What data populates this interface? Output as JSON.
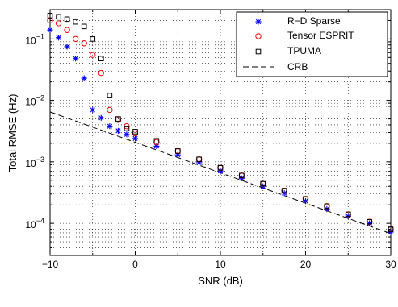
{
  "chart_data": {
    "type": "scatter",
    "xlabel": "SNR (dB)",
    "ylabel": "Total RMSE (Hz)",
    "xlim": [
      -10,
      30
    ],
    "ylim": [
      3e-05,
      0.3
    ],
    "yscale": "log",
    "grid": true,
    "legend_position": "top-right",
    "x_ticks": [
      -10,
      0,
      10,
      20,
      30
    ],
    "x_tick_labels": [
      "−10",
      "0",
      "10",
      "20",
      "30"
    ],
    "y_ticks": [
      0.0001,
      0.001,
      0.01,
      0.1
    ],
    "y_tick_labels": [
      {
        "base": "10",
        "exp": "−4"
      },
      {
        "base": "10",
        "exp": "−3"
      },
      {
        "base": "10",
        "exp": "−2"
      },
      {
        "base": "10",
        "exp": "−1"
      }
    ],
    "series": [
      {
        "name": "R−D Sparse",
        "marker": "star",
        "color": "#0000ff",
        "points": [
          [
            -10,
            0.14
          ],
          [
            -9,
            0.105
          ],
          [
            -8,
            0.075
          ],
          [
            -7,
            0.048
          ],
          [
            -6,
            0.023
          ],
          [
            -5,
            0.007
          ],
          [
            -4,
            0.0052
          ],
          [
            -3,
            0.0038
          ],
          [
            -2,
            0.0032
          ],
          [
            -1,
            0.0028
          ],
          [
            0,
            0.0024
          ],
          [
            2.5,
            0.0018
          ],
          [
            5,
            0.0013
          ],
          [
            7.5,
            0.00097
          ],
          [
            10,
            0.00071
          ],
          [
            12.5,
            0.00054
          ],
          [
            15,
            0.0004
          ],
          [
            17.5,
            0.00031
          ],
          [
            20,
            0.00023
          ],
          [
            22.5,
            0.00017
          ],
          [
            25,
            0.00013
          ],
          [
            27.5,
            0.0001
          ],
          [
            30,
            7.2e-05
          ]
        ]
      },
      {
        "name": "Tensor ESPRIT",
        "marker": "circle",
        "color": "#ff0000",
        "points": [
          [
            -10,
            0.2
          ],
          [
            -9,
            0.18
          ],
          [
            -8,
            0.14
          ],
          [
            -7,
            0.1
          ],
          [
            -6,
            0.085
          ],
          [
            -5,
            0.055
          ],
          [
            -4,
            0.028
          ],
          [
            -3,
            0.007
          ],
          [
            -2,
            0.0048
          ],
          [
            -1,
            0.0038
          ],
          [
            0,
            0.0029
          ],
          [
            2.5,
            0.0021
          ],
          [
            5,
            0.0015
          ],
          [
            7.5,
            0.0011
          ],
          [
            10,
            0.0008
          ],
          [
            12.5,
            0.0006
          ],
          [
            15,
            0.00044
          ],
          [
            17.5,
            0.00034
          ],
          [
            20,
            0.00025
          ],
          [
            22.5,
            0.00019
          ],
          [
            25,
            0.00014
          ],
          [
            27.5,
            0.000106
          ],
          [
            30,
            8e-05
          ]
        ]
      },
      {
        "name": "TPUMA",
        "marker": "square",
        "color": "#000000",
        "points": [
          [
            -10,
            0.24
          ],
          [
            -9,
            0.23
          ],
          [
            -8,
            0.21
          ],
          [
            -7,
            0.19
          ],
          [
            -6,
            0.16
          ],
          [
            -5,
            0.1
          ],
          [
            -4,
            0.048
          ],
          [
            -3,
            0.012
          ],
          [
            -2,
            0.005
          ],
          [
            -1,
            0.0035
          ],
          [
            0,
            0.0031
          ],
          [
            2.5,
            0.0022
          ],
          [
            5,
            0.0015
          ],
          [
            7.5,
            0.0011
          ],
          [
            10,
            0.0008
          ],
          [
            12.5,
            0.0006
          ],
          [
            15,
            0.00044
          ],
          [
            17.5,
            0.00034
          ],
          [
            20,
            0.00025
          ],
          [
            22.5,
            0.00019
          ],
          [
            25,
            0.00014
          ],
          [
            27.5,
            0.000106
          ],
          [
            30,
            8e-05
          ]
        ]
      },
      {
        "name": "CRB",
        "marker": "dashed-line",
        "color": "#000000",
        "points": [
          [
            -10,
            0.0065
          ],
          [
            30,
            6.8e-05
          ]
        ]
      }
    ]
  }
}
